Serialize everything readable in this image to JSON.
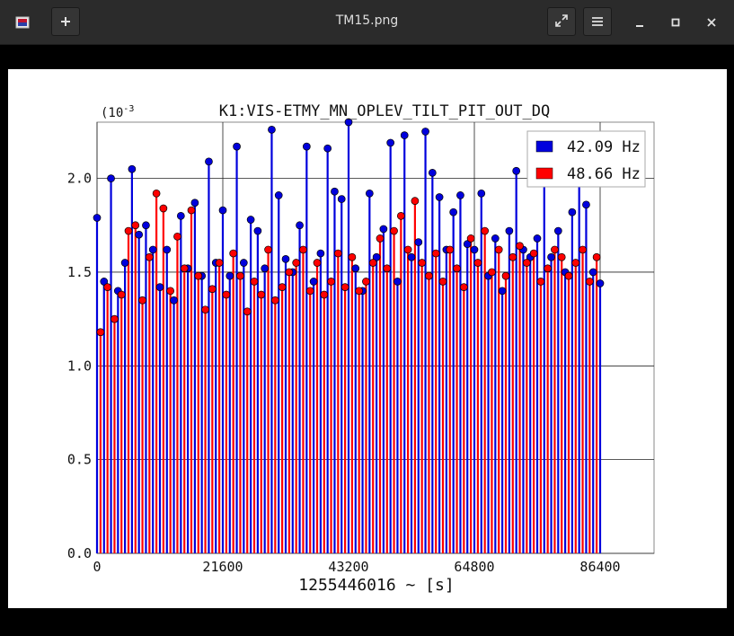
{
  "window": {
    "title": "TM15.png",
    "app_icon": "image-viewer-icon",
    "buttons": {
      "new_tab": "plus-icon",
      "fullscreen": "expand-icon",
      "menu": "hamburger-icon",
      "minimize": "minimize-icon",
      "maximize": "maximize-icon",
      "close": "close-icon"
    }
  },
  "chart_data": {
    "type": "scatter",
    "title": "K1:VIS-ETMY_MN_OPLEV_TILT_PIT_OUT_DQ",
    "xlabel": "1255446016 ~ [s]",
    "ylabel": "",
    "y_multiplier_label": "(10",
    "y_multiplier_exp": "-3",
    "xlim": [
      0,
      86400
    ],
    "ylim": [
      0,
      2.3
    ],
    "xticks": [
      "0",
      "21600",
      "43200",
      "64800",
      "86400"
    ],
    "yticks": [
      "0.0",
      "0.5",
      "1.0",
      "1.5",
      "2.0"
    ],
    "xtick_values": [
      0,
      21600,
      43200,
      64800,
      86400
    ],
    "ytick_values": [
      0,
      0.5,
      1.0,
      1.5,
      2.0
    ],
    "grid": true,
    "legend_position": "top-right",
    "series": [
      {
        "name": "42.09 Hz",
        "color": "#0000dd",
        "style": "stem",
        "x": [
          0,
          1200,
          2400,
          3600,
          4800,
          6000,
          7200,
          8400,
          9600,
          10800,
          12000,
          13200,
          14400,
          15600,
          16800,
          18000,
          19200,
          20400,
          21600,
          22800,
          24000,
          25200,
          26400,
          27600,
          28800,
          30000,
          31200,
          32400,
          33600,
          34800,
          36000,
          37200,
          38400,
          39600,
          40800,
          42000,
          43200,
          44400,
          45600,
          46800,
          48000,
          49200,
          50400,
          51600,
          52800,
          54000,
          55200,
          56400,
          57600,
          58800,
          60000,
          61200,
          62400,
          63600,
          64800,
          66000,
          67200,
          68400,
          69600,
          70800,
          72000,
          73200,
          74400,
          75600,
          76800,
          78000,
          79200,
          80400,
          81600,
          82800,
          84000,
          85200,
          86400
        ],
        "y": [
          1.79,
          1.45,
          2.0,
          1.4,
          1.55,
          2.05,
          1.7,
          1.75,
          1.62,
          1.42,
          1.62,
          1.35,
          1.8,
          1.52,
          1.87,
          1.48,
          2.09,
          1.55,
          1.83,
          1.48,
          2.17,
          1.55,
          1.78,
          1.72,
          1.52,
          2.26,
          1.91,
          1.57,
          1.5,
          1.75,
          2.17,
          1.45,
          1.6,
          2.16,
          1.93,
          1.89,
          2.3,
          1.52,
          1.4,
          1.92,
          1.58,
          1.73,
          2.19,
          1.45,
          2.23,
          1.58,
          1.66,
          2.25,
          2.03,
          1.9,
          1.62,
          1.82,
          1.91,
          1.65,
          1.62,
          1.92,
          1.48,
          1.68,
          1.4,
          1.72,
          2.04,
          1.62,
          1.58,
          1.68,
          2.06,
          1.58,
          1.72,
          1.5,
          1.82,
          2.12,
          1.86,
          1.5,
          1.44
        ]
      },
      {
        "name": "48.66 Hz",
        "color": "#ff0000",
        "style": "stem",
        "x": [
          600,
          1800,
          3000,
          4200,
          5400,
          6600,
          7800,
          9000,
          10200,
          11400,
          12600,
          13800,
          15000,
          16200,
          17400,
          18600,
          19800,
          21000,
          22200,
          23400,
          24600,
          25800,
          27000,
          28200,
          29400,
          30600,
          31800,
          33000,
          34200,
          35400,
          36600,
          37800,
          39000,
          40200,
          41400,
          42600,
          43800,
          45000,
          46200,
          47400,
          48600,
          49800,
          51000,
          52200,
          53400,
          54600,
          55800,
          57000,
          58200,
          59400,
          60600,
          61800,
          63000,
          64200,
          65400,
          66600,
          67800,
          69000,
          70200,
          71400,
          72600,
          73800,
          75000,
          76200,
          77400,
          78600,
          79800,
          81000,
          82200,
          83400,
          84600,
          85800
        ],
        "y": [
          1.18,
          1.42,
          1.25,
          1.38,
          1.72,
          1.75,
          1.35,
          1.58,
          1.92,
          1.84,
          1.4,
          1.69,
          1.52,
          1.83,
          1.48,
          1.3,
          1.41,
          1.55,
          1.38,
          1.6,
          1.48,
          1.29,
          1.45,
          1.38,
          1.62,
          1.35,
          1.42,
          1.5,
          1.55,
          1.62,
          1.4,
          1.55,
          1.38,
          1.45,
          1.6,
          1.42,
          1.58,
          1.4,
          1.45,
          1.55,
          1.68,
          1.52,
          1.72,
          1.8,
          1.62,
          1.88,
          1.55,
          1.48,
          1.6,
          1.45,
          1.62,
          1.52,
          1.42,
          1.68,
          1.55,
          1.72,
          1.5,
          1.62,
          1.48,
          1.58,
          1.64,
          1.55,
          1.6,
          1.45,
          1.52,
          1.62,
          1.58,
          1.48,
          1.55,
          1.62,
          1.45,
          1.58
        ]
      }
    ]
  }
}
